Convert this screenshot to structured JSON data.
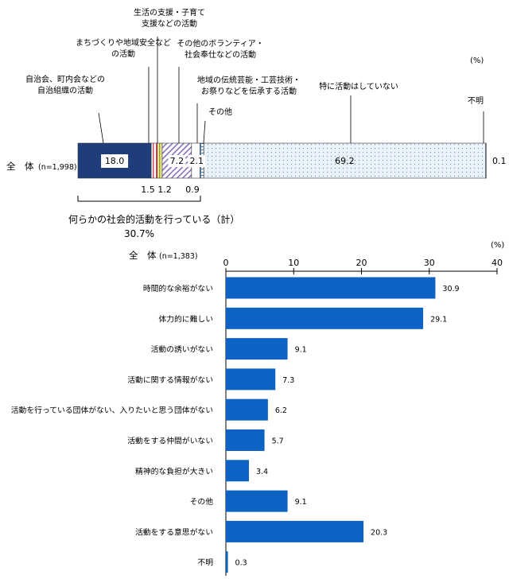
{
  "chart_data": [
    {
      "type": "bar",
      "orientation": "horizontal-stacked",
      "unit_label": "(%)",
      "row_label": "全　体",
      "row_n": "(n=1,998)",
      "segments": [
        {
          "label_lines": [
            "自治会、町内会などの",
            "自治組織の活動"
          ],
          "value": 18.0,
          "value_text": "18.0",
          "color": "#1f3d7a"
        },
        {
          "label_lines": [
            "まちづくりや地域安全など",
            "の活動"
          ],
          "value": 1.5,
          "value_text": "1.5",
          "color": "#e8a0a8"
        },
        {
          "label_lines": [
            "生活の支援・子育て",
            "支援などの活動"
          ],
          "value": 1.2,
          "value_text": "1.2",
          "color": "#e8e070"
        },
        {
          "label_lines": [
            "その他のボランティア・",
            "社会奉仕などの活動"
          ],
          "value": 7.2,
          "value_text": "7.2",
          "color": "#c8b8e0"
        },
        {
          "label_lines": [
            "地域の伝統芸能・工芸技術・",
            "お祭りなどを伝承する活動"
          ],
          "value": 2.1,
          "value_text": "2.1",
          "color": "#ffffff"
        },
        {
          "label_lines": [
            "その他"
          ],
          "value": 0.9,
          "value_text": "0.9",
          "color": "#bcd4ec"
        },
        {
          "label_lines": [
            "特に活動はしていない"
          ],
          "value": 69.2,
          "value_text": "69.2",
          "color": "#eaf2fa"
        },
        {
          "label_lines": [
            "不明"
          ],
          "value": 0.1,
          "value_text": "0.1",
          "color": "#ffffff"
        }
      ],
      "summary_line1": "何らかの社会的活動を行っている（計）",
      "summary_line2": "30.7%"
    },
    {
      "type": "bar",
      "orientation": "horizontal",
      "unit_label": "(%)",
      "group_label": "全　体",
      "group_n": "(n=1,383)",
      "xlim": [
        0,
        40
      ],
      "xticks": [
        "0",
        "10",
        "20",
        "30",
        "40"
      ],
      "bar_color": "#0d63c4",
      "categories": [
        "時間的な余裕がない",
        "体力的に難しい",
        "活動の誘いがない",
        "活動に関する情報がない",
        "活動を行っている団体がない、入りたいと思う団体がない",
        "活動をする仲間がいない",
        "精神的な負担が大きい",
        "その他",
        "活動をする意思がない",
        "不明"
      ],
      "values": [
        30.9,
        29.1,
        9.1,
        7.3,
        6.2,
        5.7,
        3.4,
        9.1,
        20.3,
        0.3
      ],
      "value_labels": [
        "30.9",
        "29.1",
        "9.1",
        "7.3",
        "6.2",
        "5.7",
        "3.4",
        "9.1",
        "20.3",
        "0.3"
      ]
    }
  ]
}
